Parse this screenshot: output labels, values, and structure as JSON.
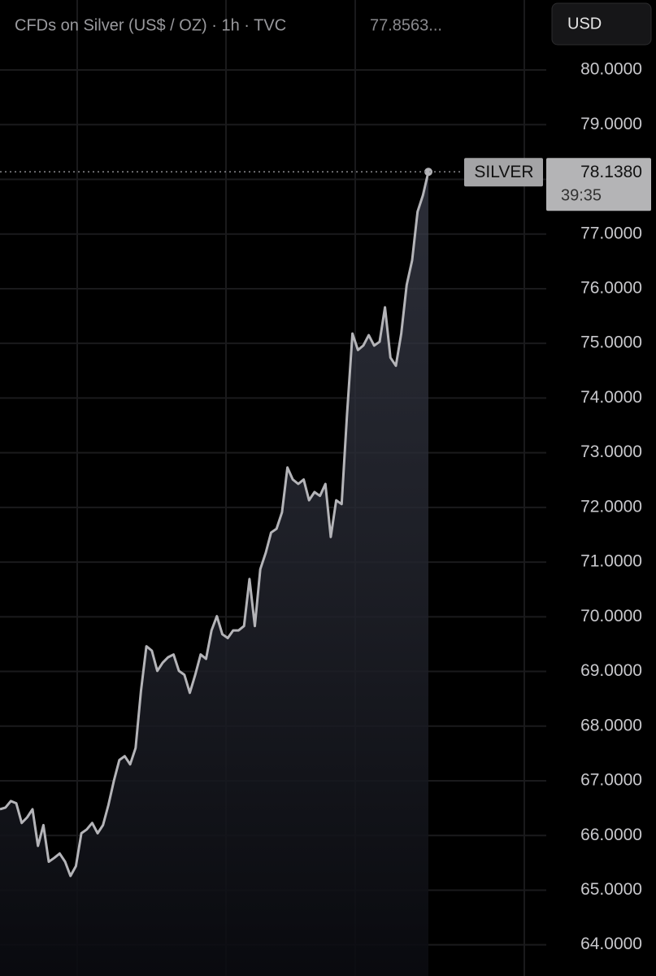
{
  "chart_data": {
    "type": "area",
    "title": "CFDs on Silver (US$ / OZ) · 1h · TVC",
    "header_value": "77.8563...",
    "currency_button": "USD",
    "series": [
      {
        "name": "SILVER",
        "color": "#b4b4b8",
        "values": [
          66.48,
          66.51,
          66.63,
          66.59,
          66.23,
          66.33,
          66.48,
          65.81,
          66.19,
          65.52,
          65.59,
          65.67,
          65.52,
          65.26,
          65.44,
          66.04,
          66.11,
          66.23,
          66.04,
          66.19,
          66.56,
          67.0,
          67.38,
          67.45,
          67.3,
          67.6,
          68.64,
          69.46,
          69.38,
          69.01,
          69.16,
          69.26,
          69.31,
          69.01,
          68.94,
          68.61,
          68.94,
          69.31,
          69.23,
          69.75,
          70.01,
          69.68,
          69.61,
          69.75,
          69.75,
          69.83,
          70.69,
          69.83,
          70.87,
          71.17,
          71.54,
          71.61,
          71.91,
          72.73,
          72.51,
          72.43,
          72.51,
          72.13,
          72.28,
          72.21,
          72.43,
          71.46,
          72.13,
          72.06,
          73.7,
          75.18,
          74.88,
          74.96,
          75.15,
          74.96,
          75.03,
          75.66,
          74.74,
          74.59,
          75.18,
          76.07,
          76.52,
          77.41,
          77.71,
          78.138
        ]
      }
    ],
    "last_price": {
      "value": 78.138,
      "label": "78.1380",
      "countdown": "39:35"
    },
    "ylim": [
      63.43,
      81.28
    ],
    "yticks": [
      {
        "value": 80,
        "label": "80.0000"
      },
      {
        "value": 79,
        "label": "79.0000"
      },
      {
        "value": 78,
        "label": "78.0000"
      },
      {
        "value": 77,
        "label": "77.0000"
      },
      {
        "value": 76,
        "label": "76.0000"
      },
      {
        "value": 75,
        "label": "75.0000"
      },
      {
        "value": 74,
        "label": "74.0000"
      },
      {
        "value": 73,
        "label": "73.0000"
      },
      {
        "value": 72,
        "label": "72.0000"
      },
      {
        "value": 71,
        "label": "71.0000"
      },
      {
        "value": 70,
        "label": "70.0000"
      },
      {
        "value": 69,
        "label": "69.0000"
      },
      {
        "value": 68,
        "label": "68.0000"
      },
      {
        "value": 67,
        "label": "67.0000"
      },
      {
        "value": 66,
        "label": "66.0000"
      },
      {
        "value": 65,
        "label": "65.0000"
      },
      {
        "value": 64,
        "label": "64.0000"
      }
    ],
    "grid": true
  }
}
